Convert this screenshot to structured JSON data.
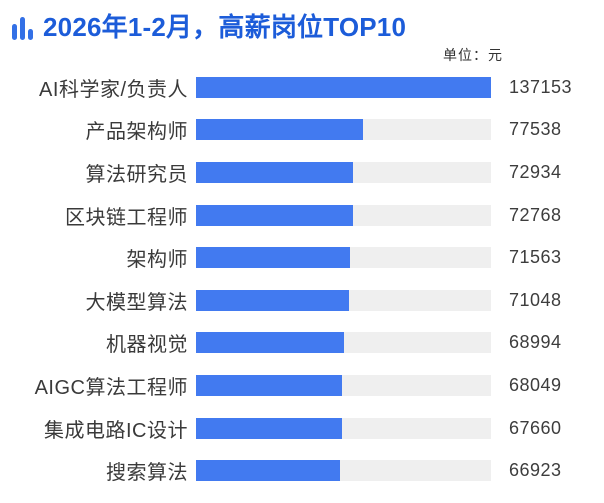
{
  "header": {
    "title": "2026年1-2月，高薪岗位TOP10",
    "icon": "bar-chart-icon",
    "unit_label": "单位：元"
  },
  "colors": {
    "title_blue": "#1c5cd9",
    "icon_blue": "#3370e6",
    "bar_blue": "#427af0",
    "track_gray": "#efefef",
    "label_text": "#3a3a3a",
    "value_text": "#3d3d3d",
    "background": "#ffffff"
  },
  "chart_data": {
    "type": "bar",
    "orientation": "horizontal",
    "title": "2026年1-2月，高薪岗位TOP10",
    "unit": "元",
    "categories": [
      "AI科学家/负责人",
      "产品架构师",
      "算法研究员",
      "区块链工程师",
      "架构师",
      "大模型算法",
      "机器视觉",
      "AIGC算法工程师",
      "集成电路IC设计",
      "搜索算法"
    ],
    "values": [
      137153,
      77538,
      72934,
      72768,
      71563,
      71048,
      68994,
      68049,
      67660,
      66923
    ],
    "xlim": [
      0,
      137153
    ],
    "value_labels_shown": true,
    "legend": "none",
    "grid": "off"
  }
}
